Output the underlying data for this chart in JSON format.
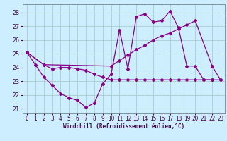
{
  "xlabel": "Windchill (Refroidissement éolien,°C)",
  "bg_color": "#cceeff",
  "grid_color": "#aacccc",
  "line_color": "#880088",
  "xlim": [
    -0.5,
    23.5
  ],
  "ylim": [
    20.7,
    28.6
  ],
  "yticks": [
    21,
    22,
    23,
    24,
    25,
    26,
    27,
    28
  ],
  "xticks": [
    0,
    1,
    2,
    3,
    4,
    5,
    6,
    7,
    8,
    9,
    10,
    11,
    12,
    13,
    14,
    15,
    16,
    17,
    18,
    19,
    20,
    21,
    22,
    23
  ],
  "series1_x": [
    0,
    1,
    2,
    3,
    4,
    5,
    6,
    7,
    8,
    9,
    10,
    11,
    12,
    13,
    14,
    15,
    16,
    17,
    18,
    19,
    20,
    21,
    22
  ],
  "series1_y": [
    25.1,
    24.2,
    23.3,
    22.7,
    22.1,
    21.8,
    21.6,
    21.1,
    21.4,
    22.8,
    23.5,
    26.7,
    23.9,
    27.7,
    27.9,
    27.3,
    27.4,
    28.1,
    26.9,
    24.1,
    24.1,
    23.1,
    23.1
  ],
  "series2_x": [
    0,
    2,
    10,
    11,
    12,
    13,
    14,
    15,
    16,
    17,
    18,
    19,
    20,
    22,
    23
  ],
  "series2_y": [
    25.1,
    24.2,
    24.1,
    24.5,
    24.9,
    25.3,
    25.6,
    26.0,
    26.3,
    26.5,
    26.8,
    27.1,
    27.4,
    24.1,
    23.1
  ],
  "series3_x": [
    0,
    2,
    3,
    4,
    5,
    6,
    7,
    8,
    9,
    10,
    11,
    12,
    13,
    14,
    15,
    16,
    17,
    18,
    19,
    20,
    21,
    22,
    23
  ],
  "series3_y": [
    25.1,
    24.2,
    23.9,
    24.0,
    24.0,
    23.9,
    23.8,
    23.5,
    23.3,
    23.1,
    23.1,
    23.1,
    23.1,
    23.1,
    23.1,
    23.1,
    23.1,
    23.1,
    23.1,
    23.1,
    23.1,
    23.1,
    23.1
  ],
  "xlabel_fontsize": 5.5,
  "tick_fontsize": 5.5,
  "ytick_fontsize": 6
}
